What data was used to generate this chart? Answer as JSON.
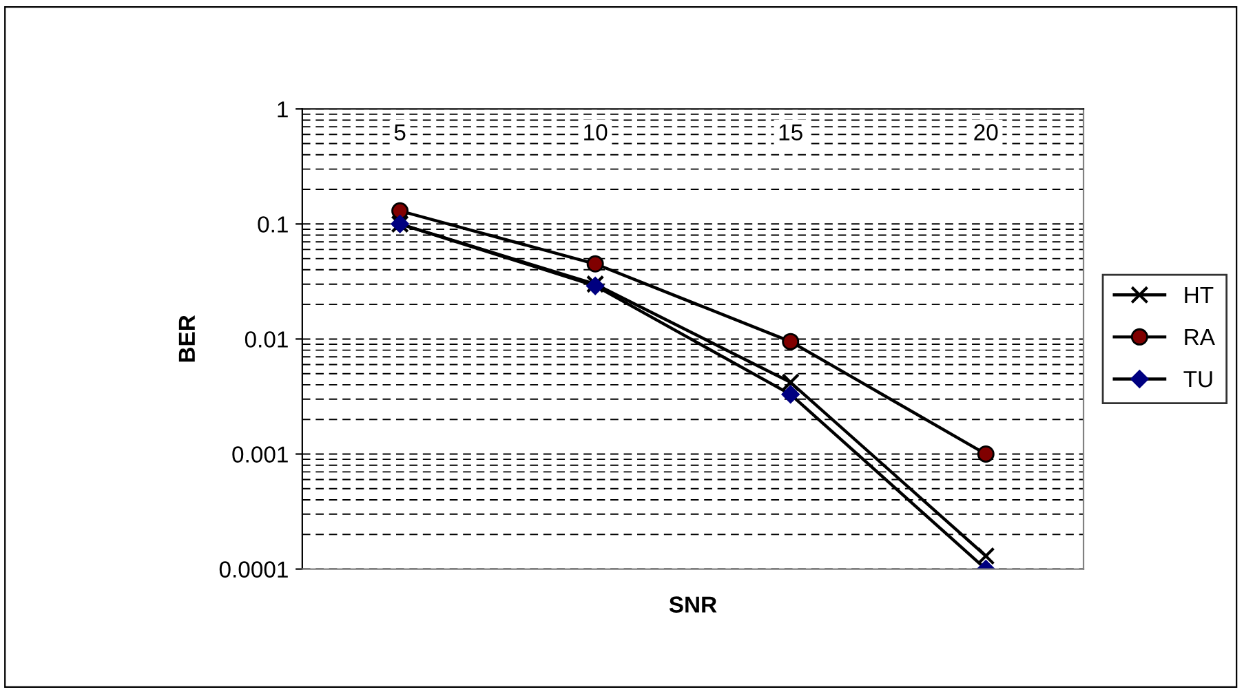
{
  "chart_data": {
    "type": "line",
    "xlabel": "SNR",
    "ylabel": "BER",
    "categories": [
      "5",
      "10",
      "15",
      "20"
    ],
    "log": "y",
    "ylim": [
      0.0001,
      1
    ],
    "yticks": [
      0.0001,
      0.001,
      0.01,
      0.1,
      1
    ],
    "grid": "y",
    "legend": "right",
    "series": [
      {
        "name": "HT",
        "color": "#000000",
        "marker": "cross",
        "values": [
          0.1,
          0.03,
          0.0042,
          0.00013
        ]
      },
      {
        "name": "RA",
        "color": "#800000",
        "marker": "circle",
        "values": [
          0.13,
          0.045,
          0.0095,
          0.001
        ]
      },
      {
        "name": "TU",
        "color": "#000080",
        "marker": "diamond",
        "values": [
          0.1,
          0.029,
          0.0033,
          0.0001
        ]
      }
    ]
  }
}
